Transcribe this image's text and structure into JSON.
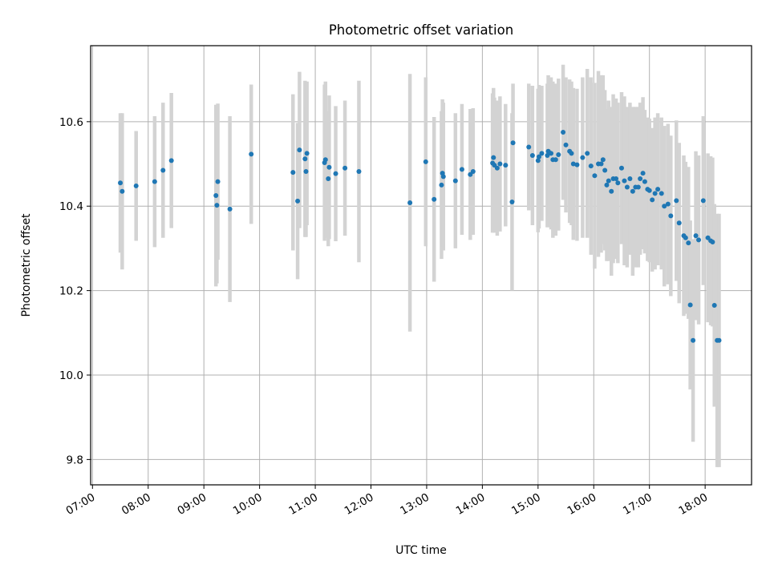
{
  "chart_data": {
    "type": "scatter",
    "title": "Photometric offset variation",
    "xlabel": "UTC time",
    "ylabel": "Photometric offset",
    "xlim": [
      "06:58",
      "18:50"
    ],
    "ylim": [
      9.74,
      10.78
    ],
    "x_ticks": [
      "07:00",
      "08:00",
      "09:00",
      "10:00",
      "11:00",
      "12:00",
      "13:00",
      "14:00",
      "15:00",
      "16:00",
      "17:00",
      "18:00"
    ],
    "y_ticks": [
      9.8,
      10.0,
      10.2,
      10.4,
      10.6
    ],
    "grid": true,
    "marker_color": "#1f77b4",
    "errorbar_color": "#d3d3d3",
    "series": [
      {
        "x": [
          "07:30",
          "07:32",
          "07:47",
          "08:07",
          "08:16",
          "08:25",
          "09:13",
          "09:14",
          "09:15",
          "09:28",
          "09:51",
          "10:36",
          "10:41",
          "10:43",
          "10:49",
          "10:50",
          "10:51",
          "11:10",
          "11:11",
          "11:14",
          "11:15",
          "11:22",
          "11:32",
          "11:47",
          "12:42",
          "12:59",
          "13:08",
          "13:16",
          "13:17",
          "13:18",
          "13:31",
          "13:38",
          "13:47",
          "13:50",
          "14:11",
          "14:12",
          "14:13",
          "14:16",
          "14:19",
          "14:25",
          "14:32",
          "14:33",
          "14:50",
          "14:54",
          "15:00",
          "15:01",
          "15:04",
          "15:10",
          "15:11",
          "15:12",
          "15:14",
          "15:16",
          "15:19",
          "15:22",
          "15:27",
          "15:30",
          "15:34",
          "15:36",
          "15:38",
          "15:42",
          "15:48",
          "15:53",
          "15:57",
          "16:01",
          "16:05",
          "16:08",
          "16:10",
          "16:12",
          "16:14",
          "16:16",
          "16:19",
          "16:21",
          "16:24",
          "16:26",
          "16:30",
          "16:33",
          "16:36",
          "16:39",
          "16:42",
          "16:45",
          "16:48",
          "16:50",
          "16:53",
          "16:55",
          "16:58",
          "17:00",
          "17:03",
          "17:06",
          "17:09",
          "17:13",
          "17:16",
          "17:20",
          "17:23",
          "17:29",
          "17:32",
          "17:37",
          "17:39",
          "17:42",
          "17:44",
          "17:47",
          "17:50",
          "17:53",
          "17:58",
          "18:03",
          "18:06",
          "18:08",
          "18:10",
          "18:13",
          "18:15"
        ],
        "y": [
          10.455,
          10.435,
          10.448,
          10.458,
          10.485,
          10.508,
          10.425,
          10.402,
          10.458,
          10.393,
          10.523,
          10.48,
          10.412,
          10.533,
          10.512,
          10.482,
          10.525,
          10.503,
          10.51,
          10.465,
          10.492,
          10.477,
          10.49,
          10.482,
          10.408,
          10.505,
          10.416,
          10.45,
          10.478,
          10.47,
          10.46,
          10.487,
          10.475,
          10.482,
          10.502,
          10.515,
          10.497,
          10.49,
          10.5,
          10.497,
          10.41,
          10.55,
          10.54,
          10.52,
          10.508,
          10.517,
          10.525,
          10.52,
          10.53,
          10.527,
          10.525,
          10.51,
          10.51,
          10.522,
          10.575,
          10.545,
          10.53,
          10.525,
          10.5,
          10.498,
          10.515,
          10.525,
          10.495,
          10.472,
          10.5,
          10.5,
          10.51,
          10.485,
          10.45,
          10.46,
          10.435,
          10.465,
          10.465,
          10.455,
          10.49,
          10.46,
          10.445,
          10.465,
          10.435,
          10.445,
          10.445,
          10.465,
          10.478,
          10.458,
          10.44,
          10.437,
          10.415,
          10.43,
          10.44,
          10.43,
          10.4,
          10.405,
          10.377,
          10.413,
          10.36,
          10.33,
          10.325,
          10.313,
          10.166,
          10.082,
          10.33,
          10.32,
          10.413,
          10.325,
          10.318,
          10.315,
          10.165,
          10.082,
          10.082
        ],
        "yerr": [
          0.165,
          0.185,
          0.13,
          0.155,
          0.16,
          0.16,
          0.215,
          0.185,
          0.185,
          0.22,
          0.165,
          0.185,
          0.185,
          0.185,
          0.185,
          0.155,
          0.17,
          0.185,
          0.185,
          0.16,
          0.17,
          0.16,
          0.16,
          0.215,
          0.305,
          0.2,
          0.195,
          0.175,
          0.175,
          0.175,
          0.16,
          0.155,
          0.155,
          0.15,
          0.165,
          0.165,
          0.16,
          0.16,
          0.16,
          0.145,
          0.21,
          0.14,
          0.15,
          0.165,
          0.17,
          0.17,
          0.16,
          0.17,
          0.18,
          0.15,
          0.18,
          0.185,
          0.18,
          0.18,
          0.16,
          0.16,
          0.17,
          0.17,
          0.18,
          0.18,
          0.19,
          0.2,
          0.21,
          0.22,
          0.22,
          0.21,
          0.2,
          0.19,
          0.18,
          0.19,
          0.2,
          0.2,
          0.19,
          0.19,
          0.18,
          0.2,
          0.19,
          0.18,
          0.2,
          0.19,
          0.19,
          0.18,
          0.18,
          0.17,
          0.17,
          0.17,
          0.17,
          0.18,
          0.18,
          0.18,
          0.19,
          0.19,
          0.19,
          0.19,
          0.19,
          0.19,
          0.18,
          0.18,
          0.2,
          0.24,
          0.2,
          0.2,
          0.2,
          0.2,
          0.2,
          0.2,
          0.24,
          0.3,
          0.3
        ]
      }
    ]
  }
}
